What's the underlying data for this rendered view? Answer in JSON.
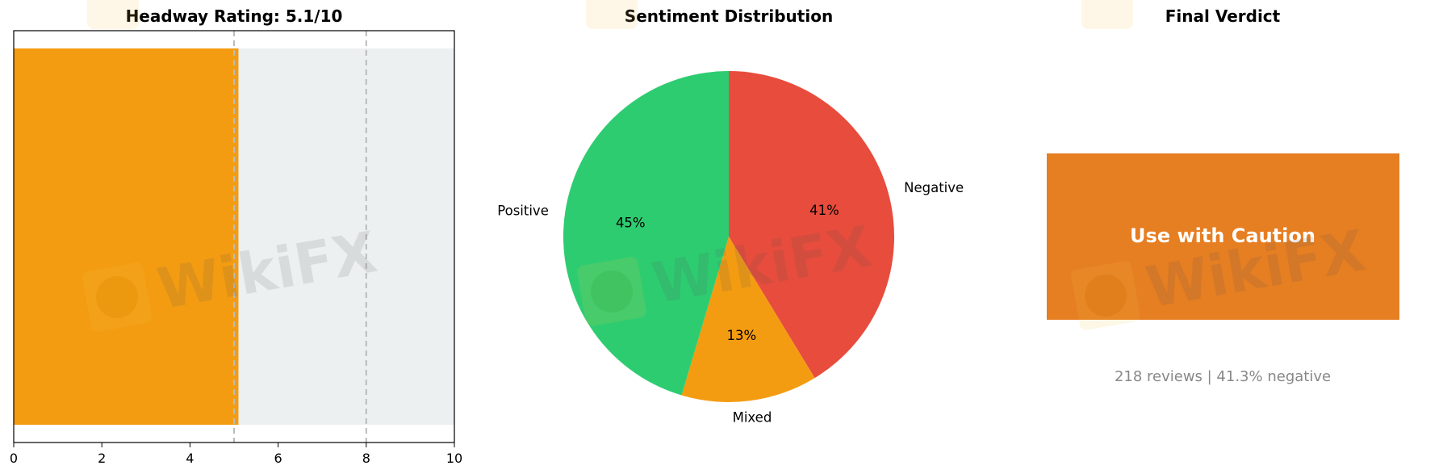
{
  "chart_data": [
    {
      "type": "bar",
      "orientation": "horizontal",
      "title": "Headway Rating: 5.1/10",
      "values": [
        5.1
      ],
      "xlim": [
        0,
        10
      ],
      "xticks": [
        "0",
        "2",
        "4",
        "6",
        "8",
        "10"
      ],
      "reference_lines": [
        5,
        8
      ],
      "bar_color": "#f39c12",
      "background_color": "#ecf0f1",
      "grid": false
    },
    {
      "type": "pie",
      "title": "Sentiment Distribution",
      "slices": [
        {
          "label": "Negative",
          "value": 41.3,
          "pct_label": "41%",
          "color": "#e74c3c"
        },
        {
          "label": "Mixed",
          "value": 13.3,
          "pct_label": "13%",
          "color": "#f39c12"
        },
        {
          "label": "Positive",
          "value": 45.4,
          "pct_label": "45%",
          "color": "#2ecc71"
        }
      ]
    },
    {
      "type": "table",
      "title": "Final Verdict",
      "verdict": "Use with Caution",
      "verdict_color": "#e67e22",
      "summary": "218 reviews | 41.3% negative"
    }
  ],
  "watermark": {
    "text": "WikiFX"
  }
}
